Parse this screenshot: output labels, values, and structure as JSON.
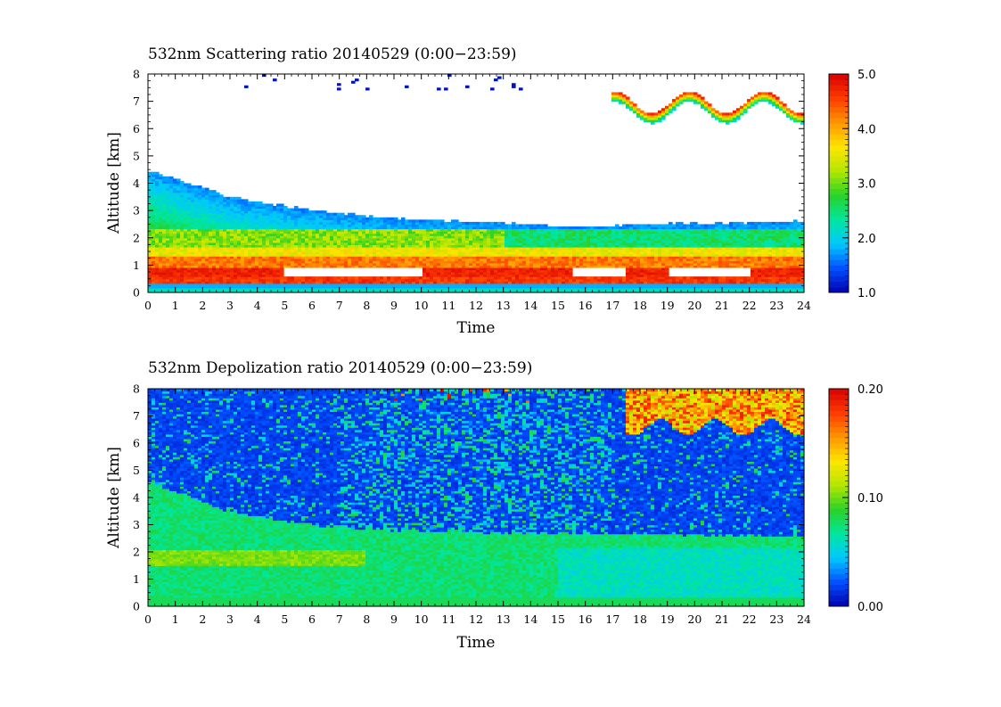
{
  "chart_data": [
    {
      "type": "heatmap",
      "title": "532nm Scattering ratio  20140529 (0:00−23:59)",
      "xlabel": "Time",
      "ylabel": "Altitude [km]",
      "xlim": [
        0,
        24
      ],
      "ylim": [
        0,
        8
      ],
      "x_ticks": [
        "0",
        "1",
        "2",
        "3",
        "4",
        "5",
        "6",
        "7",
        "8",
        "9",
        "10",
        "11",
        "12",
        "13",
        "14",
        "15",
        "16",
        "17",
        "18",
        "19",
        "20",
        "21",
        "22",
        "23",
        "24"
      ],
      "y_ticks": [
        "0",
        "1",
        "2",
        "3",
        "4",
        "5",
        "6",
        "7",
        "8"
      ],
      "colorbar": {
        "range": [
          1.0,
          5.0
        ],
        "tick_labels": [
          "1.0",
          "2.0",
          "3.0",
          "4.0",
          "5.0"
        ],
        "tick_values": [
          1.0,
          2.0,
          3.0,
          4.0,
          5.0
        ],
        "colormap": "jet (blue-cyan-green-yellow-orange-red)"
      },
      "features": {
        "aerosol_layer_top_km": [
          [
            0,
            4.5
          ],
          [
            3,
            3.5
          ],
          [
            6,
            3.0
          ],
          [
            9,
            2.7
          ],
          [
            12,
            2.6
          ],
          [
            15.5,
            2.4
          ],
          [
            18,
            2.5
          ],
          [
            24,
            2.6
          ]
        ],
        "strong_layer_base_top_km": [
          0.5,
          1.5
        ],
        "cloud_top_right_hours": [
          17,
          24
        ],
        "cloud_top_right_altitude_km": [
          6.5,
          8
        ],
        "values_above_5_clipped_white": true
      }
    },
    {
      "type": "heatmap",
      "title": "532nm Depolization ratio  20140529 (0:00−23:59)",
      "xlabel": "Time",
      "ylabel": "Altitude [km]",
      "xlim": [
        0,
        24
      ],
      "ylim": [
        0,
        8
      ],
      "x_ticks": [
        "0",
        "1",
        "2",
        "3",
        "4",
        "5",
        "6",
        "7",
        "8",
        "9",
        "10",
        "11",
        "12",
        "13",
        "14",
        "15",
        "16",
        "17",
        "18",
        "19",
        "20",
        "21",
        "22",
        "23",
        "24"
      ],
      "y_ticks": [
        "0",
        "1",
        "2",
        "3",
        "4",
        "5",
        "6",
        "7",
        "8"
      ],
      "colorbar": {
        "range": [
          0.0,
          0.2
        ],
        "tick_labels": [
          "0.00",
          "0.10",
          "0.20"
        ],
        "tick_values": [
          0.0,
          0.1,
          0.2
        ],
        "colormap": "jet (blue-cyan-green-yellow-orange-red)"
      },
      "features": {
        "boundary_layer_top_km": [
          [
            0,
            4.6
          ],
          [
            3,
            3.5
          ],
          [
            6,
            3.0
          ],
          [
            9,
            2.8
          ],
          [
            15,
            2.7
          ],
          [
            24,
            2.6
          ]
        ],
        "high_depol_cloud_hours": [
          17.5,
          24
        ],
        "high_depol_cloud_altitude_km": [
          6.5,
          8
        ]
      }
    }
  ],
  "colors": {
    "jet": [
      "#0000b0",
      "#0050ff",
      "#00c8ff",
      "#00e6a0",
      "#28d228",
      "#b4e600",
      "#ffe600",
      "#ff9600",
      "#ff3c00",
      "#d70000"
    ]
  }
}
